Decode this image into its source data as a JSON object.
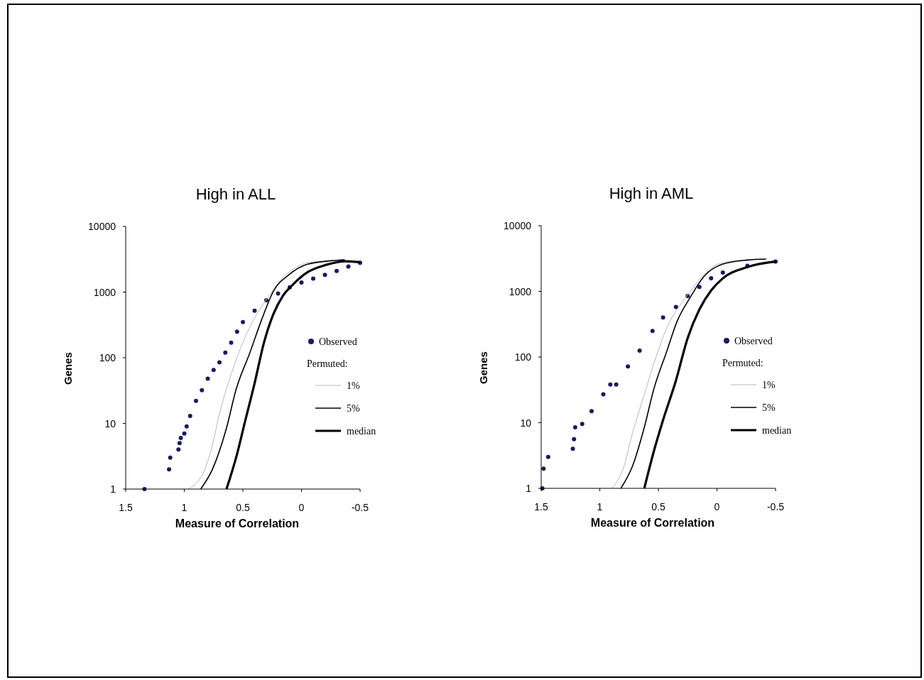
{
  "chart_data": [
    {
      "type": "line",
      "title": "High in ALL",
      "xlabel": "Measure of Correlation",
      "ylabel": "Genes",
      "legend_title": "Permuted:",
      "legend": "right",
      "log": "y",
      "grid": false,
      "xlim": [
        1.5,
        -0.5
      ],
      "xticks": [
        1.5,
        1,
        0.5,
        0,
        -0.5
      ],
      "ylim": [
        1,
        10000
      ],
      "yticks": [
        1,
        10,
        100,
        1000,
        10000
      ],
      "series": [
        {
          "name": "Observed",
          "type": "scatter",
          "marker": "circle",
          "color": "#1a1a5e",
          "x": [
            1.34,
            1.13,
            1.12,
            1.05,
            1.04,
            1.03,
            1.0,
            0.98,
            0.95,
            0.9,
            0.85,
            0.8,
            0.75,
            0.7,
            0.65,
            0.6,
            0.55,
            0.5,
            0.4,
            0.3,
            0.2,
            0.1,
            0,
            -0.1,
            -0.2,
            -0.3,
            -0.4,
            -0.5
          ],
          "values": [
            1,
            2,
            3,
            4,
            5,
            6,
            7,
            9,
            13,
            22,
            32,
            48,
            65,
            85,
            120,
            170,
            250,
            350,
            520,
            750,
            950,
            1180,
            1400,
            1600,
            1830,
            2100,
            2450,
            2800
          ]
        },
        {
          "name": "1%",
          "type": "line",
          "color": "#b8b8b8",
          "x": [
            0.965,
            0.825,
            0.76,
            0.7,
            0.6,
            0.46,
            0.36,
            0.25,
            0.155,
            0.05,
            -0.05,
            -0.25,
            -0.36
          ],
          "values": [
            1,
            2,
            4.7,
            14,
            56,
            250,
            530,
            1030,
            1700,
            2350,
            2800,
            3000,
            3100
          ]
        },
        {
          "name": "5%",
          "type": "line",
          "color": "#000000",
          "x": [
            0.86,
            0.76,
            0.64,
            0.56,
            0.44,
            0.34,
            0.24,
            0.11,
            -0.05,
            -0.25,
            -0.37
          ],
          "values": [
            1,
            2,
            8.5,
            32,
            120,
            380,
            1030,
            1820,
            2650,
            3000,
            3100
          ]
        },
        {
          "name": "median",
          "type": "line",
          "color": "#000000",
          "x": [
            0.64,
            0.55,
            0.48,
            0.4,
            0.32,
            0.24,
            0.16,
            0.07,
            -0.05,
            -0.21,
            -0.37,
            -0.5
          ],
          "values": [
            1,
            3.4,
            11,
            41,
            170,
            460,
            870,
            1320,
            2000,
            2600,
            2950,
            2850
          ]
        }
      ]
    },
    {
      "type": "line",
      "title": "High in AML",
      "xlabel": "Measure of Correlation",
      "ylabel": "Genes",
      "legend_title": "Permuted:",
      "legend": "right",
      "log": "y",
      "grid": false,
      "xlim": [
        1.5,
        -0.5
      ],
      "xticks": [
        1.5,
        1,
        0.5,
        0,
        -0.5
      ],
      "ylim": [
        1,
        10000
      ],
      "yticks": [
        1,
        10,
        100,
        1000,
        10000
      ],
      "series": [
        {
          "name": "Observed",
          "type": "scatter",
          "marker": "circle",
          "color": "#1a1a5e",
          "x": [
            1.49,
            1.48,
            1.44,
            1.23,
            1.22,
            1.21,
            1.15,
            1.07,
            0.97,
            0.91,
            0.86,
            0.76,
            0.66,
            0.55,
            0.46,
            0.35,
            0.25,
            0.15,
            0.05,
            -0.05,
            -0.26,
            -0.5
          ],
          "values": [
            1,
            2,
            3,
            4,
            5.6,
            8.5,
            9.6,
            15,
            27,
            38,
            38,
            72,
            125,
            250,
            400,
            580,
            850,
            1170,
            1580,
            1930,
            2450,
            2850
          ]
        },
        {
          "name": "1%",
          "type": "line",
          "color": "#b8b8b8",
          "x": [
            0.9,
            0.8,
            0.72,
            0.62,
            0.52,
            0.42,
            0.31,
            0.21,
            0.11,
            -0.01,
            -0.21,
            -0.41
          ],
          "values": [
            1,
            2,
            7,
            27,
            100,
            300,
            630,
            1100,
            1820,
            2600,
            3000,
            3100
          ]
        },
        {
          "name": "5%",
          "type": "line",
          "color": "#000000",
          "x": [
            0.82,
            0.72,
            0.62,
            0.54,
            0.43,
            0.34,
            0.23,
            0.11,
            -0.05,
            -0.26,
            -0.42
          ],
          "values": [
            1,
            2.2,
            8.5,
            32,
            120,
            350,
            800,
            1700,
            2600,
            3000,
            3100
          ]
        },
        {
          "name": "median",
          "type": "line",
          "color": "#000000",
          "x": [
            0.62,
            0.54,
            0.46,
            0.35,
            0.25,
            0.15,
            0.05,
            -0.05,
            -0.26,
            -0.5
          ],
          "values": [
            1,
            3.6,
            11,
            44,
            195,
            530,
            1030,
            1580,
            2350,
            2850
          ]
        }
      ]
    }
  ]
}
